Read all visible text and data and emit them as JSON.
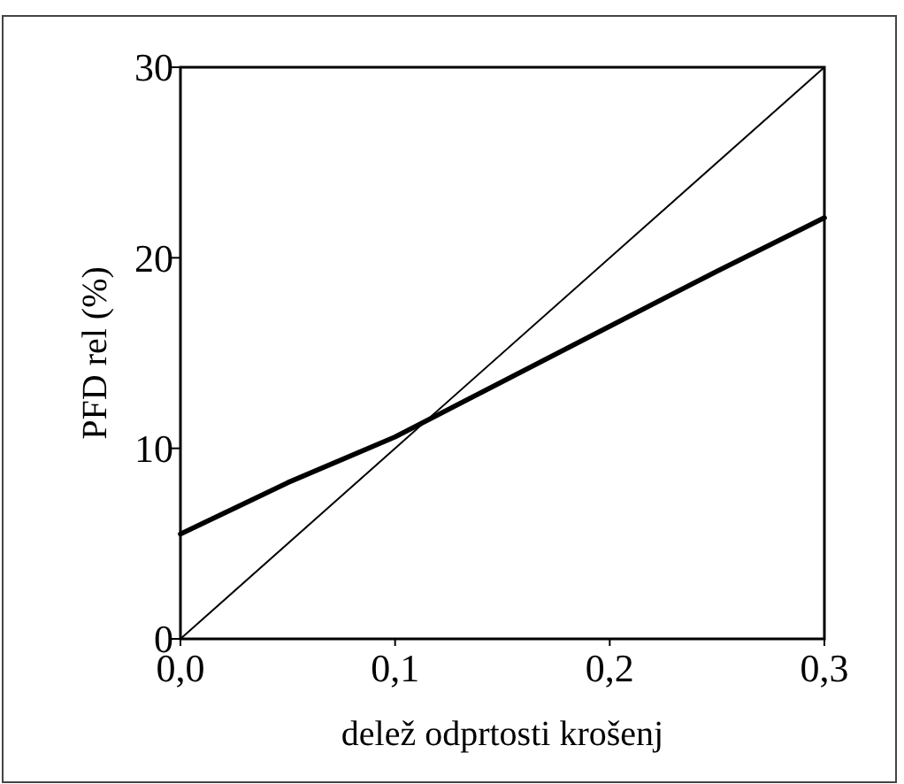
{
  "chart_data": {
    "type": "line",
    "xlabel": "delež odprtosti krošenj",
    "ylabel": "PFD rel (%)",
    "xlim": [
      0,
      0.3
    ],
    "ylim": [
      0,
      30
    ],
    "xticks": [
      {
        "value": 0,
        "label": "0,0"
      },
      {
        "value": 0.1,
        "label": "0,1"
      },
      {
        "value": 0.2,
        "label": "0,2"
      },
      {
        "value": 0.3,
        "label": "0,3"
      }
    ],
    "yticks": [
      0,
      10,
      20,
      30
    ],
    "grid": false,
    "marker": "none",
    "line_style": "solid",
    "series": [
      {
        "color": "#000000",
        "x": [
          0,
          0.3
        ],
        "values": [
          0,
          30
        ]
      },
      {
        "color": "#000000",
        "x": [
          0,
          0.05,
          0.1,
          0.15,
          0.2,
          0.25,
          0.3
        ],
        "values": [
          5.5,
          8.2,
          10.6,
          13.5,
          16.4,
          19.3,
          22.1
        ]
      }
    ]
  }
}
